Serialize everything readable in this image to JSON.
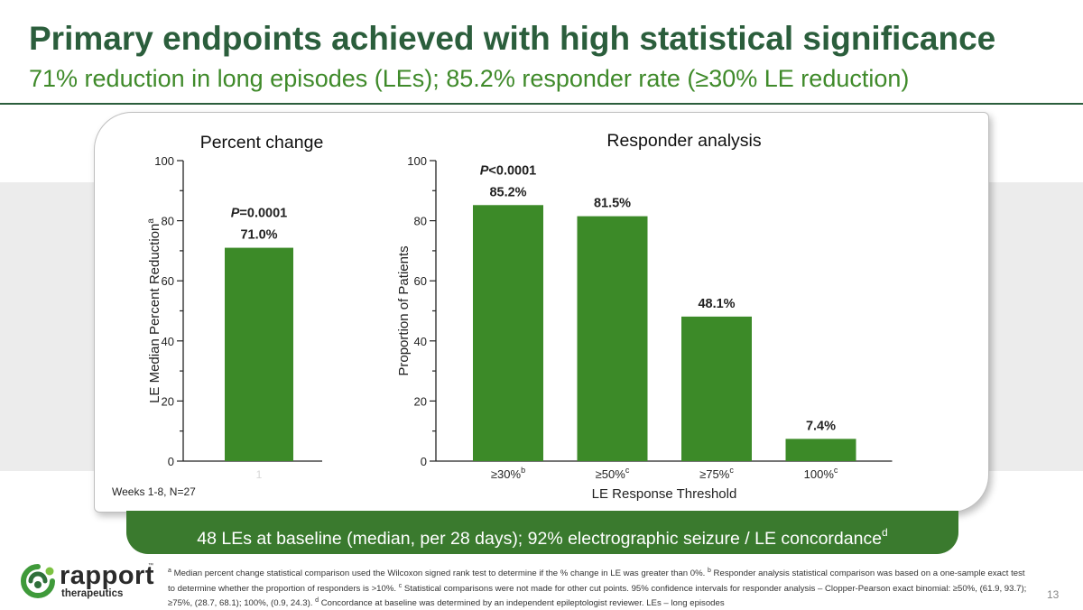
{
  "header": {
    "title": "Primary endpoints achieved with high statistical significance",
    "subtitle": "71% reduction in long episodes (LEs); 85.2% responder rate (≥30% LE reduction)"
  },
  "colors": {
    "bar": "#3c8a28",
    "title": "#2b5e3c",
    "banner": "#3a7a2e",
    "logo_green": "#3f9a3a"
  },
  "chart_data": [
    {
      "type": "bar",
      "title": "Percent change",
      "categories": [
        "1"
      ],
      "values": [
        71.0
      ],
      "data_labels": [
        "71.0%"
      ],
      "annotation_prefix": "P",
      "annotation_suffix": "=0.0001",
      "ylabel": "LE Median Percent Reduction",
      "ylabel_sup": "a",
      "xlabel": "",
      "ylim": [
        0,
        100
      ],
      "yticks": [
        0,
        20,
        40,
        60,
        80,
        100
      ],
      "note": "Weeks 1-8, N=27"
    },
    {
      "type": "bar",
      "title": "Responder analysis",
      "categories": [
        "≥30%",
        "≥50%",
        "≥75%",
        "100%"
      ],
      "category_sups": [
        "b",
        "c",
        "c",
        "c"
      ],
      "values": [
        85.2,
        81.5,
        48.1,
        7.4
      ],
      "data_labels": [
        "85.2%",
        "81.5%",
        "48.1%",
        "7.4%"
      ],
      "annotation_prefix": "P",
      "annotation_suffix": "<0.0001",
      "ylabel": "Proportion of Patients",
      "xlabel": "LE Response Threshold",
      "ylim": [
        0,
        100
      ],
      "yticks": [
        0,
        20,
        40,
        60,
        80,
        100
      ]
    }
  ],
  "banner": {
    "text": "48 LEs at baseline (median, per 28 days); 92% electrographic seizure / LE concordance",
    "sup": "d"
  },
  "logo": {
    "word": "rapport",
    "tm": "™",
    "sub": "therapeutics"
  },
  "footnote": {
    "a_mark": "a",
    "a": " Median percent change statistical comparison used the Wilcoxon signed rank test to determine if the % change in LE was greater than 0%. ",
    "b_mark": "b",
    "b": " Responder analysis statistical comparison was based on a one-sample exact test to determine whether the proportion of responders is >10%. ",
    "c_mark": "c",
    "c": " Statistical comparisons were not made for other cut points. 95% confidence intervals for responder analysis – Clopper-Pearson exact binomial: ≥50%, (61.9, 93.7); ≥75%, (28.7, 68.1); 100%, (0.9, 24.3). ",
    "d_mark": "d",
    "d": " Concordance at baseline was determined by an independent epileptologist reviewer. LEs – long episodes"
  },
  "page_number": "13"
}
